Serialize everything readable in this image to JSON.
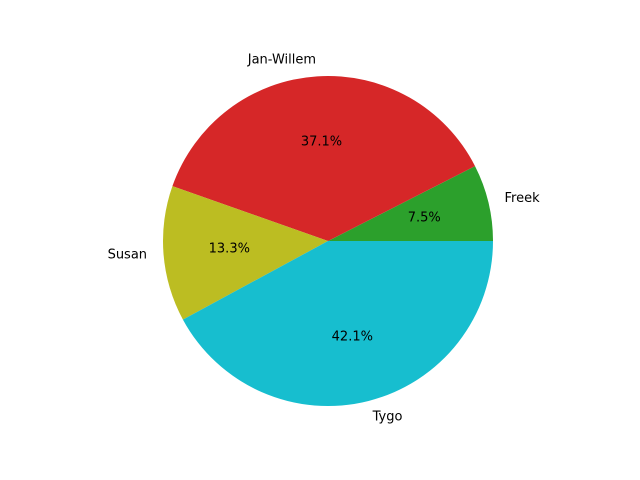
{
  "chart_data": {
    "type": "pie",
    "title": "",
    "start_angle_deg": 0,
    "direction": "counterclockwise",
    "slices": [
      {
        "label": "Freek",
        "value": 7.5,
        "pct_label": "7.5%",
        "color": "#2ca02c"
      },
      {
        "label": "Jan-Willem",
        "value": 37.1,
        "pct_label": "37.1%",
        "color": "#d62728"
      },
      {
        "label": "Susan",
        "value": 13.3,
        "pct_label": "13.3%",
        "color": "#bcbd22"
      },
      {
        "label": "Tygo",
        "value": 42.1,
        "pct_label": "42.1%",
        "color": "#17becf"
      }
    ]
  }
}
